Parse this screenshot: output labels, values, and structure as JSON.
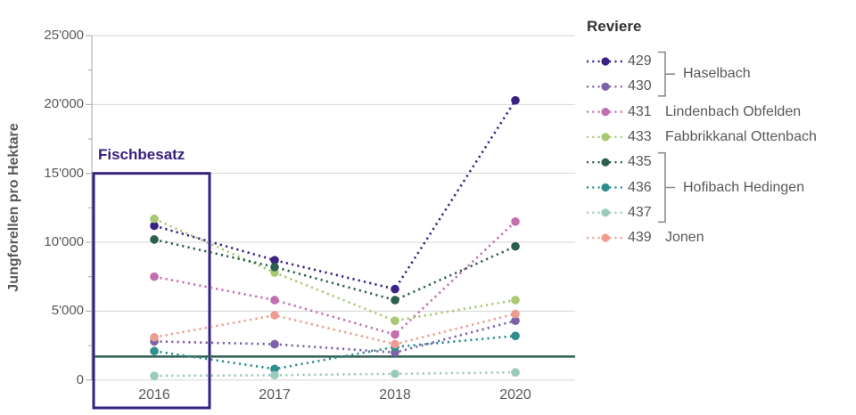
{
  "chart_data": {
    "type": "line",
    "title": "",
    "y_axis_title": "Jungforellen pro Hektare",
    "x_categories": [
      "2016",
      "2017",
      "2018",
      "2020"
    ],
    "ylim": [
      0,
      25000
    ],
    "y_ticks": [
      {
        "value": 0,
        "label": "0"
      },
      {
        "value": 5000,
        "label": "5'000"
      },
      {
        "value": 10000,
        "label": "10'000"
      },
      {
        "value": 15000,
        "label": "15'000"
      },
      {
        "value": 20000,
        "label": "20'000"
      },
      {
        "value": 25000,
        "label": "25'000"
      }
    ],
    "grid": "horizontal",
    "legend_position": "right",
    "line_style": "dotted-with-markers",
    "series": [
      {
        "id": "429",
        "label": "429",
        "group": "Haselbach",
        "color": "#3a2284",
        "values": [
          11200,
          8700,
          6600,
          20300
        ]
      },
      {
        "id": "430",
        "label": "430",
        "group": "Haselbach",
        "color": "#7e62a8",
        "values": [
          2800,
          2600,
          2000,
          4300
        ]
      },
      {
        "id": "431",
        "label": "431",
        "group": "Lindenbach Obfelden",
        "color": "#c26fb0",
        "values": [
          7500,
          5800,
          3300,
          11500
        ]
      },
      {
        "id": "433",
        "label": "433",
        "group": "Fabbrikkanal Ottenbach",
        "color": "#a9c873",
        "values": [
          11700,
          7800,
          4300,
          5800
        ]
      },
      {
        "id": "435",
        "label": "435",
        "group": "Hofibach Hedingen",
        "color": "#2d5f50",
        "values": [
          10200,
          8200,
          5800,
          9700
        ]
      },
      {
        "id": "436",
        "label": "436",
        "group": "Hofibach Hedingen",
        "color": "#2e8d8d",
        "values": [
          2100,
          800,
          2400,
          3200
        ]
      },
      {
        "id": "437",
        "label": "437",
        "group": "Hofibach Hedingen",
        "color": "#9bc9bd",
        "values": [
          300,
          350,
          450,
          550
        ]
      },
      {
        "id": "439",
        "label": "439",
        "group": "Jonen",
        "color": "#ec9c90",
        "values": [
          3100,
          4700,
          2600,
          4800
        ]
      }
    ],
    "reference_line": {
      "value": 1700,
      "color": "#2f5e51"
    },
    "annotation": {
      "label": "Fischbesatz",
      "color": "#36217e",
      "x_category": "2016",
      "y_top": 15000
    }
  },
  "legend": {
    "title": "Reviere",
    "groups": [
      {
        "name": "Haselbach",
        "members": [
          "429",
          "430"
        ],
        "bracket": true
      },
      {
        "name": "Lindenbach Obfelden",
        "members": [
          "431"
        ],
        "bracket": false
      },
      {
        "name": "Fabbrikkanal Ottenbach",
        "members": [
          "433"
        ],
        "bracket": false
      },
      {
        "name": "Hofibach Hedingen",
        "members": [
          "435",
          "436",
          "437"
        ],
        "bracket": true
      },
      {
        "name": "Jonen",
        "members": [
          "439"
        ],
        "bracket": false
      }
    ]
  },
  "colors": {
    "axis_text": "#595959",
    "grid_line": "#d6d6d6",
    "axis_line": "#a6a6a6",
    "legend_text": "#595959",
    "legend_title": "#333333",
    "bracket": "#8c8c8c"
  }
}
